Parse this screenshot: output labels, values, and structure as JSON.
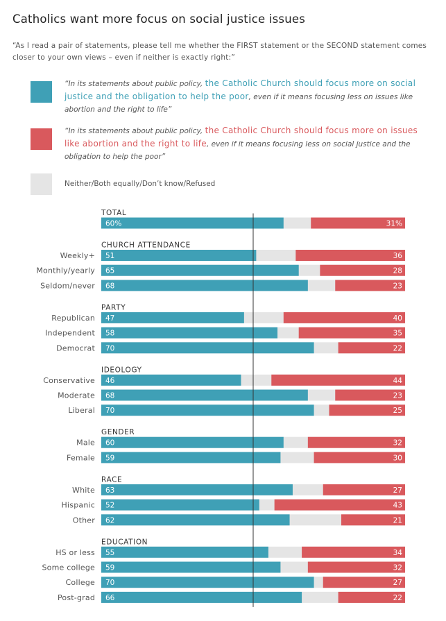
{
  "title": "Catholics want more focus on social justice issues",
  "question": "“As I read a pair of statements, please tell me whether the FIRST statement or the SECOND statement comes closer to your own views – even if neither is exactly right:”",
  "legend": {
    "first": {
      "prefix": "“In its statements about public policy, ",
      "highlight": "the Catholic Church should focus more on social justice and the obligation to help the poor",
      "suffix": ", even if it means focusing less on issues like abortion and the right to life”",
      "color": "#3fa0b6"
    },
    "second": {
      "prefix": "“In its statements about public policy, ",
      "highlight": "the Catholic Church should focus more on issues like abortion and the right to life",
      "suffix": ", even if it means focusing less on social justice and the obligation to help the poor”",
      "color": "#d9595d"
    },
    "neither": {
      "label": "Neither/Both equally/Don’t know/Refused",
      "color": "#e5e5e5"
    }
  },
  "chart_data": {
    "type": "bar",
    "stacked": true,
    "orientation": "horizontal",
    "series_colors": {
      "social_justice": "#3fa0b6",
      "neither": "#e5e5e5",
      "abortion": "#d9595d"
    },
    "groups": [
      {
        "heading": "TOTAL",
        "rows": [
          {
            "label": "",
            "left": 60,
            "right": 31,
            "left_text": "60%",
            "right_text": "31%"
          }
        ]
      },
      {
        "heading": "CHURCH ATTENDANCE",
        "rows": [
          {
            "label": "Weekly+",
            "left": 51,
            "right": 36
          },
          {
            "label": "Monthly/yearly",
            "left": 65,
            "right": 28
          },
          {
            "label": "Seldom/never",
            "left": 68,
            "right": 23
          }
        ]
      },
      {
        "heading": "PARTY",
        "rows": [
          {
            "label": "Republican",
            "left": 47,
            "right": 40
          },
          {
            "label": "Independent",
            "left": 58,
            "right": 35
          },
          {
            "label": "Democrat",
            "left": 70,
            "right": 22
          }
        ]
      },
      {
        "heading": "IDEOLOGY",
        "rows": [
          {
            "label": "Conservative",
            "left": 46,
            "right": 44
          },
          {
            "label": "Moderate",
            "left": 68,
            "right": 23
          },
          {
            "label": "Liberal",
            "left": 70,
            "right": 25
          }
        ]
      },
      {
        "heading": "GENDER",
        "rows": [
          {
            "label": "Male",
            "left": 60,
            "right": 32
          },
          {
            "label": "Female",
            "left": 59,
            "right": 30
          }
        ]
      },
      {
        "heading": "RACE",
        "rows": [
          {
            "label": "White",
            "left": 63,
            "right": 27
          },
          {
            "label": "Hispanic",
            "left": 52,
            "right": 43
          },
          {
            "label": "Other",
            "left": 62,
            "right": 21
          }
        ]
      },
      {
        "heading": "EDUCATION",
        "rows": [
          {
            "label": "HS or less",
            "left": 55,
            "right": 34
          },
          {
            "label": "Some college",
            "left": 59,
            "right": 32
          },
          {
            "label": "College",
            "left": 70,
            "right": 27
          },
          {
            "label": "Post-grad",
            "left": 66,
            "right": 22
          }
        ]
      }
    ]
  }
}
